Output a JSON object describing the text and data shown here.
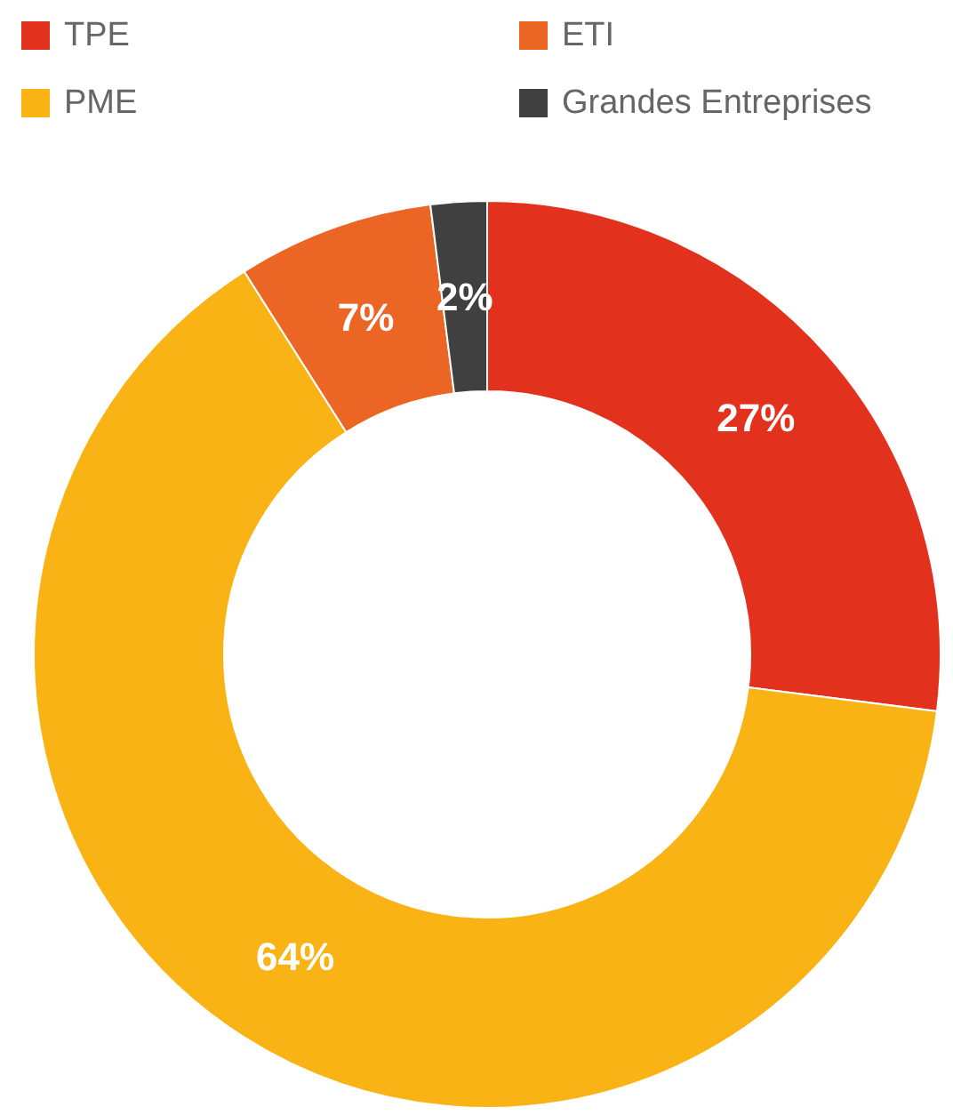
{
  "chart_data": {
    "type": "donut",
    "categories": [
      "TPE",
      "PME",
      "ETI",
      "Grandes Entreprises"
    ],
    "values": [
      27,
      64,
      7,
      2
    ],
    "colors": [
      "#e2311d",
      "#f9b314",
      "#eb6524",
      "#404040"
    ],
    "value_labels": [
      "27%",
      "64%",
      "7%",
      "2%"
    ],
    "legend": "top"
  }
}
